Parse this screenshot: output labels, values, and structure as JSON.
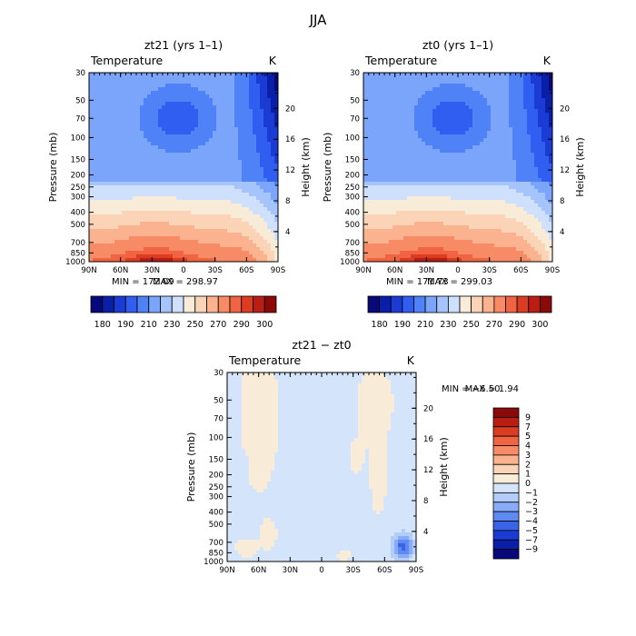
{
  "figure_title": "JJA",
  "chart_data": [
    {
      "type": "heatmap",
      "panel": "top-left",
      "title": "zt21 (yrs 1–1)",
      "subtitle": "Temperature",
      "units": "K",
      "xlabel": "",
      "ylabel": "Pressure (mb)",
      "y2label": "Height (km)",
      "x_ticks": [
        "90N",
        "60N",
        "30N",
        "0",
        "30S",
        "60S",
        "90S"
      ],
      "y_ticks": [
        30,
        50,
        70,
        100,
        150,
        200,
        250,
        300,
        400,
        500,
        700,
        850,
        1000
      ],
      "y2_ticks": [
        4,
        8,
        12,
        16,
        20
      ],
      "min_text": "MIN = 172.09",
      "max_text": "MAX = 298.97",
      "colorbar_labels": [
        "180",
        "190",
        "210",
        "230",
        "250",
        "270",
        "290",
        "300"
      ]
    },
    {
      "type": "heatmap",
      "panel": "top-right",
      "title": "zt0 (yrs 1–1)",
      "subtitle": "Temperature",
      "units": "K",
      "xlabel": "",
      "ylabel": "Pressure (mb)",
      "y2label": "Height (km)",
      "x_ticks": [
        "90N",
        "60N",
        "30N",
        "0",
        "30S",
        "60S",
        "90S"
      ],
      "y_ticks": [
        30,
        50,
        70,
        100,
        150,
        200,
        250,
        300,
        400,
        500,
        700,
        850,
        1000
      ],
      "y2_ticks": [
        4,
        8,
        12,
        16,
        20
      ],
      "min_text": "MIN = 171.73",
      "max_text": "MAX = 299.03",
      "colorbar_labels": [
        "180",
        "190",
        "210",
        "230",
        "250",
        "270",
        "290",
        "300"
      ]
    },
    {
      "type": "heatmap",
      "panel": "bottom",
      "title": "zt21 − zt0",
      "subtitle": "Temperature",
      "units": "K",
      "xlabel": "",
      "ylabel": "Pressure (mb)",
      "y2label": "Height (km)",
      "x_ticks": [
        "90N",
        "60N",
        "30N",
        "0",
        "30S",
        "60S",
        "90S"
      ],
      "y_ticks": [
        30,
        50,
        70,
        100,
        150,
        200,
        250,
        300,
        400,
        500,
        700,
        850,
        1000
      ],
      "y2_ticks": [
        4,
        8,
        12,
        16,
        20
      ],
      "min_text": "MIN =   −6.50",
      "max_text": "MAX =    1.94",
      "colorbar_labels": [
        "9",
        "7",
        "5",
        "4",
        "3",
        "2",
        "1",
        "0",
        "−1",
        "−2",
        "−3",
        "−4",
        "−5",
        "−7",
        "−9"
      ]
    }
  ],
  "colors": {
    "temp_scale": [
      "#08087a",
      "#0a1fa8",
      "#1a3cd4",
      "#2f5ef0",
      "#4f82f7",
      "#7aa5fb",
      "#a6c4fc",
      "#cfe0fc",
      "#f8ecd8",
      "#fbd3b6",
      "#fab28f",
      "#f78b66",
      "#f06442",
      "#dc3c22",
      "#b81f12",
      "#8a0a0a"
    ],
    "diff_scale": [
      "#8a0a0a",
      "#b81f12",
      "#dc3c22",
      "#f06442",
      "#f78b66",
      "#fab28f",
      "#fbd3b6",
      "#f8ecd8",
      "#d4e4fb",
      "#b3cdfb",
      "#88acf8",
      "#5f8af3",
      "#3a64e8",
      "#1a3cd4",
      "#0a1fa8",
      "#08087a"
    ]
  }
}
